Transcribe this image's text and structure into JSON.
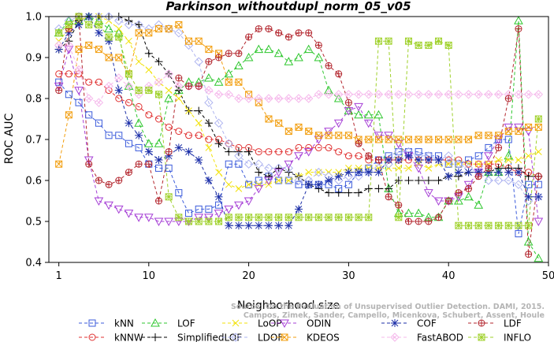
{
  "chart_data": {
    "type": "line",
    "title": "Parkinson_withoutdupl_norm_05_v05",
    "xlabel": "Neighborhood size",
    "ylabel": "ROC AUC",
    "xlim": [
      0,
      50
    ],
    "ylim": [
      0.4,
      1.0
    ],
    "xticks": [
      1,
      10,
      20,
      30,
      40,
      50
    ],
    "yticks": [
      0.4,
      0.5,
      0.6,
      0.7,
      0.8,
      0.9,
      1.0
    ],
    "grid": false,
    "legend_position": "bottom",
    "watermark": [
      "Source: On the Evaluation of Unsupervised Outlier Detection. DAMI, 2015.",
      "Campos, Zimek, Sander, Campello, Micenkova, Schubert, Assent, Houle"
    ],
    "x": [
      1,
      2,
      3,
      4,
      5,
      6,
      7,
      8,
      9,
      10,
      11,
      12,
      13,
      14,
      15,
      16,
      17,
      18,
      19,
      20,
      21,
      22,
      23,
      24,
      25,
      26,
      27,
      28,
      29,
      30,
      31,
      32,
      33,
      34,
      35,
      36,
      37,
      38,
      39,
      40,
      41,
      42,
      43,
      44,
      45,
      46,
      47,
      48,
      49
    ],
    "series": [
      {
        "name": "kNN",
        "color": "#3b5bdb",
        "marker": "square",
        "values": [
          0.84,
          0.81,
          0.79,
          0.76,
          0.74,
          0.71,
          0.71,
          0.69,
          0.68,
          0.64,
          0.63,
          0.63,
          0.57,
          0.52,
          0.53,
          0.53,
          0.54,
          0.64,
          0.64,
          0.59,
          0.6,
          0.61,
          0.6,
          0.6,
          0.59,
          0.59,
          0.59,
          0.59,
          0.58,
          0.59,
          0.62,
          0.63,
          0.65,
          0.66,
          0.67,
          0.67,
          0.67,
          0.66,
          0.66,
          0.64,
          0.64,
          0.65,
          0.66,
          0.68,
          0.7,
          0.7,
          0.47,
          0.59,
          0.59
        ]
      },
      {
        "name": "kNNW",
        "color": "#e03131",
        "marker": "circle",
        "values": [
          0.86,
          0.86,
          0.86,
          0.84,
          0.84,
          0.82,
          0.8,
          0.79,
          0.78,
          0.76,
          0.75,
          0.73,
          0.72,
          0.71,
          0.71,
          0.7,
          0.7,
          0.69,
          0.68,
          0.68,
          0.67,
          0.67,
          0.67,
          0.67,
          0.68,
          0.68,
          0.68,
          0.68,
          0.67,
          0.66,
          0.66,
          0.65,
          0.65,
          0.65,
          0.65,
          0.65,
          0.65,
          0.65,
          0.65,
          0.65,
          0.65,
          0.64,
          0.64,
          0.64,
          0.64,
          0.63,
          0.62,
          0.62,
          0.61
        ]
      },
      {
        "name": "LOF",
        "color": "#2fc72f",
        "marker": "triangle-up",
        "values": [
          0.96,
          0.99,
          0.99,
          1.0,
          0.99,
          0.97,
          0.96,
          0.83,
          0.74,
          0.69,
          0.69,
          0.8,
          0.82,
          0.84,
          0.84,
          0.85,
          0.84,
          0.86,
          0.88,
          0.9,
          0.92,
          0.92,
          0.91,
          0.89,
          0.9,
          0.92,
          0.9,
          0.82,
          0.8,
          0.77,
          0.76,
          0.76,
          0.76,
          0.58,
          0.52,
          0.52,
          0.52,
          0.51,
          0.51,
          0.55,
          0.55,
          0.56,
          0.54,
          0.62,
          0.62,
          0.66,
          0.99,
          0.45,
          0.41
        ]
      },
      {
        "name": "SimplifiedLOF",
        "color": "#000000",
        "marker": "plus",
        "values": [
          0.92,
          0.94,
          0.99,
          1.0,
          1.0,
          1.0,
          1.0,
          0.99,
          0.98,
          0.91,
          0.89,
          0.86,
          0.82,
          0.77,
          0.77,
          0.74,
          0.69,
          0.67,
          0.67,
          0.67,
          0.62,
          0.61,
          0.63,
          0.62,
          0.61,
          0.59,
          0.58,
          0.57,
          0.57,
          0.57,
          0.57,
          0.58,
          0.58,
          0.58,
          0.6,
          0.6,
          0.6,
          0.6,
          0.6,
          0.61,
          0.61,
          0.62,
          0.62,
          0.62,
          0.63,
          0.63,
          0.63,
          0.61,
          0.61
        ]
      },
      {
        "name": "LoOP",
        "color": "#f2e20a",
        "marker": "x",
        "values": [
          0.94,
          0.97,
          0.99,
          1.0,
          1.0,
          0.99,
          0.97,
          0.94,
          0.89,
          0.87,
          0.84,
          0.82,
          0.8,
          0.77,
          0.74,
          0.68,
          0.62,
          0.59,
          0.58,
          0.59,
          0.59,
          0.59,
          0.6,
          0.6,
          0.61,
          0.62,
          0.62,
          0.62,
          0.62,
          0.63,
          0.63,
          0.63,
          0.63,
          0.63,
          0.63,
          0.63,
          0.64,
          0.63,
          0.64,
          0.64,
          0.64,
          0.64,
          0.64,
          0.64,
          0.65,
          0.65,
          0.65,
          0.66,
          0.67
        ]
      },
      {
        "name": "LDOF",
        "color": "#aeb4f0",
        "marker": "diamond",
        "values": [
          0.97,
          0.99,
          1.0,
          1.0,
          1.0,
          1.0,
          0.99,
          0.98,
          0.98,
          0.97,
          0.98,
          0.97,
          0.96,
          0.93,
          0.89,
          0.79,
          0.74,
          0.69,
          0.66,
          0.64,
          0.64,
          0.63,
          0.63,
          0.63,
          0.6,
          0.6,
          0.62,
          0.61,
          0.6,
          0.61,
          0.61,
          0.62,
          0.63,
          0.64,
          0.67,
          0.67,
          0.66,
          0.66,
          0.65,
          0.66,
          0.64,
          0.63,
          0.62,
          0.6,
          0.6,
          0.6,
          0.59,
          0.55,
          0.56
        ]
      },
      {
        "name": "ODIN",
        "color": "#a63fd6",
        "marker": "triangle-down",
        "values": [
          0.83,
          0.92,
          0.82,
          0.65,
          0.55,
          0.54,
          0.53,
          0.52,
          0.51,
          0.51,
          0.5,
          0.5,
          0.5,
          0.5,
          0.51,
          0.51,
          0.52,
          0.53,
          0.54,
          0.55,
          0.58,
          0.6,
          0.62,
          0.64,
          0.66,
          0.67,
          0.7,
          0.72,
          0.74,
          0.77,
          0.78,
          0.74,
          0.71,
          0.71,
          0.69,
          0.66,
          0.63,
          0.57,
          0.55,
          0.55,
          0.56,
          0.59,
          0.62,
          0.66,
          0.7,
          0.73,
          0.73,
          0.72,
          0.5
        ]
      },
      {
        "name": "KDEOS",
        "color": "#f29d0c",
        "marker": "square-x",
        "values": [
          0.64,
          0.76,
          0.92,
          0.93,
          0.92,
          0.9,
          0.9,
          0.86,
          0.96,
          0.96,
          0.97,
          0.97,
          0.98,
          0.94,
          0.94,
          0.92,
          0.91,
          0.84,
          0.84,
          0.81,
          0.79,
          0.75,
          0.74,
          0.72,
          0.73,
          0.72,
          0.71,
          0.71,
          0.71,
          0.71,
          0.7,
          0.7,
          0.7,
          0.7,
          0.7,
          0.7,
          0.7,
          0.7,
          0.7,
          0.7,
          0.7,
          0.7,
          0.71,
          0.71,
          0.71,
          0.72,
          0.72,
          0.73,
          0.73
        ]
      },
      {
        "name": "COF",
        "color": "#1c2fa8",
        "marker": "asterisk",
        "values": [
          0.92,
          0.96,
          0.98,
          1.0,
          0.96,
          0.94,
          0.82,
          0.74,
          0.71,
          0.67,
          0.65,
          0.66,
          0.68,
          0.67,
          0.65,
          0.6,
          0.56,
          0.49,
          0.49,
          0.49,
          0.49,
          0.49,
          0.49,
          0.49,
          0.53,
          0.59,
          0.59,
          0.6,
          0.61,
          0.62,
          0.62,
          0.62,
          0.62,
          0.65,
          0.65,
          0.66,
          0.65,
          0.65,
          0.65,
          0.61,
          0.62,
          0.62,
          0.62,
          0.62,
          0.62,
          0.62,
          0.62,
          0.56,
          0.56
        ]
      },
      {
        "name": "FastABOD",
        "color": "#f5b8eb",
        "marker": "diamond-x",
        "values": [
          0.93,
          0.93,
          0.87,
          0.8,
          0.79,
          0.83,
          0.85,
          0.83,
          0.81,
          0.83,
          0.84,
          0.86,
          0.83,
          0.83,
          0.83,
          0.82,
          0.81,
          0.81,
          0.8,
          0.8,
          0.8,
          0.8,
          0.8,
          0.8,
          0.8,
          0.8,
          0.81,
          0.81,
          0.81,
          0.81,
          0.81,
          0.81,
          0.81,
          0.81,
          0.81,
          0.81,
          0.81,
          0.81,
          0.81,
          0.81,
          0.81,
          0.81,
          0.81,
          0.81,
          0.81,
          0.81,
          0.81,
          0.81,
          0.81
        ]
      },
      {
        "name": "LDF",
        "color": "#b3262e",
        "marker": "circle-plus",
        "values": [
          0.82,
          0.97,
          1.0,
          0.64,
          0.6,
          0.59,
          0.6,
          0.62,
          0.64,
          0.64,
          0.55,
          0.67,
          0.85,
          0.83,
          0.83,
          0.89,
          0.9,
          0.91,
          0.91,
          0.95,
          0.97,
          0.97,
          0.96,
          0.95,
          0.96,
          0.96,
          0.93,
          0.88,
          0.86,
          0.79,
          0.69,
          0.66,
          0.65,
          0.56,
          0.54,
          0.5,
          0.5,
          0.5,
          0.51,
          0.55,
          0.57,
          0.58,
          0.61,
          0.63,
          0.68,
          0.8,
          0.97,
          0.42,
          0.61
        ]
      },
      {
        "name": "INFLO",
        "color": "#9fd12a",
        "marker": "square-star",
        "values": [
          0.96,
          0.98,
          1.0,
          0.98,
          0.98,
          0.95,
          0.95,
          0.86,
          0.82,
          0.82,
          0.81,
          0.56,
          0.51,
          0.5,
          0.5,
          0.5,
          0.5,
          0.51,
          0.51,
          0.51,
          0.51,
          0.51,
          0.51,
          0.51,
          0.51,
          0.51,
          0.51,
          0.51,
          0.51,
          0.51,
          0.51,
          0.51,
          0.94,
          0.94,
          0.51,
          0.94,
          0.93,
          0.93,
          0.94,
          0.93,
          0.49,
          0.49,
          0.49,
          0.49,
          0.49,
          0.49,
          0.49,
          0.49,
          0.75
        ]
      }
    ]
  }
}
